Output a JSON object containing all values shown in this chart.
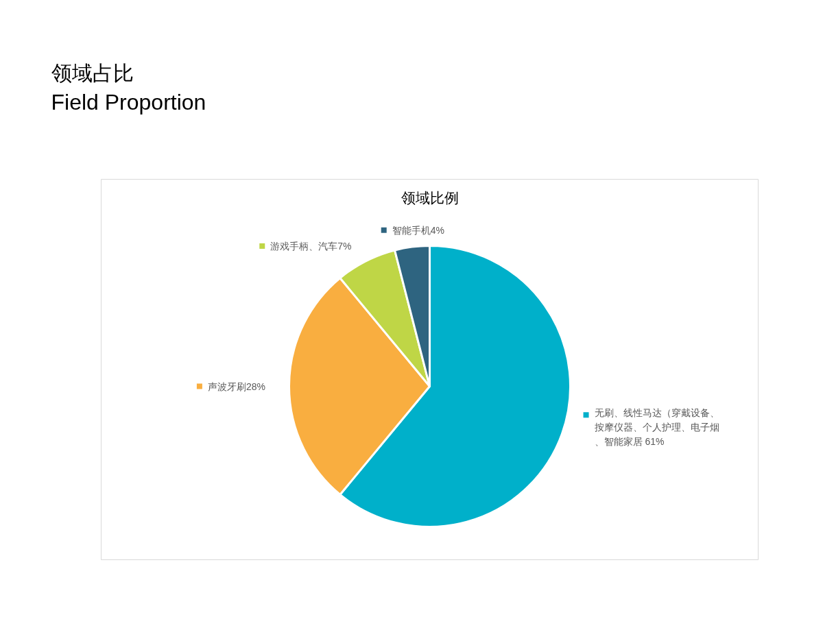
{
  "chart_data": {
    "type": "pie",
    "title": "领域比例",
    "annotations": [
      "领域占比",
      "Field Proportion"
    ],
    "categories": [
      "无刷、线性马达（穿戴设备、按摩仪器、个人护理、电子烟、智能家居 61%",
      "声波牙刷28%",
      "游戏手柄、汽车7%",
      "智能手机4%"
    ],
    "values": [
      61,
      28,
      7,
      4
    ],
    "colors": [
      "#00b0ca",
      "#f9ae40",
      "#bfd646",
      "#2e6480"
    ],
    "legend": "right"
  }
}
